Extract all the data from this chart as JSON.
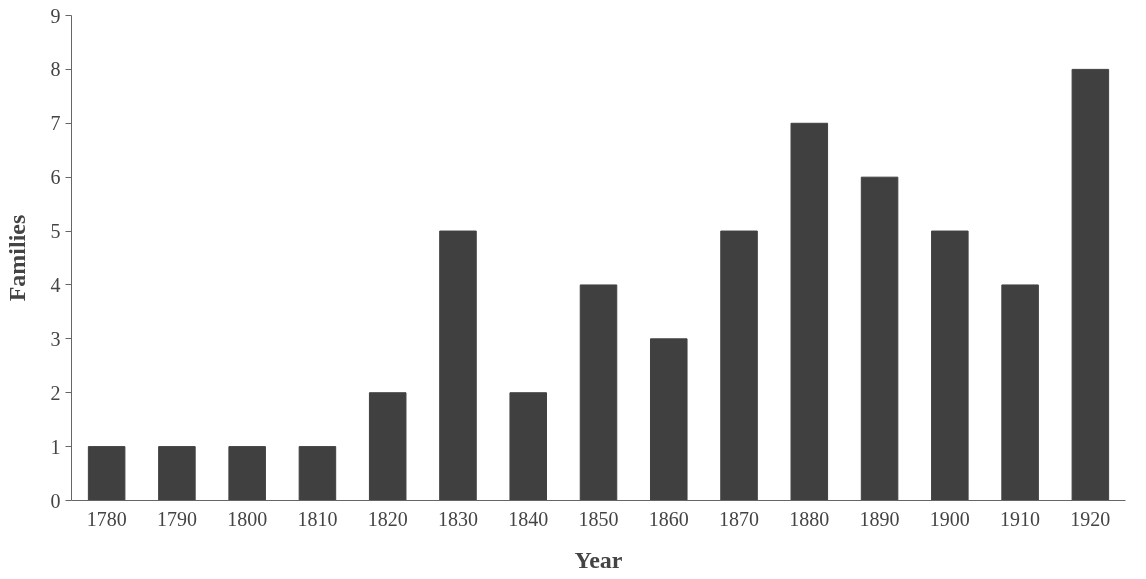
{
  "chart_data": {
    "type": "bar",
    "xlabel": "Year",
    "ylabel": "Families",
    "categories": [
      "1780",
      "1790",
      "1800",
      "1810",
      "1820",
      "1830",
      "1840",
      "1850",
      "1860",
      "1870",
      "1880",
      "1890",
      "1900",
      "1910",
      "1920"
    ],
    "values": [
      1,
      1,
      1,
      1,
      2,
      5,
      2,
      4,
      3,
      5,
      7,
      6,
      5,
      4,
      8
    ],
    "color": "#404040",
    "ylim": [
      0,
      9
    ],
    "yticks": [
      0,
      1,
      2,
      3,
      4,
      5,
      6,
      7,
      8,
      9
    ],
    "grid": false
  }
}
